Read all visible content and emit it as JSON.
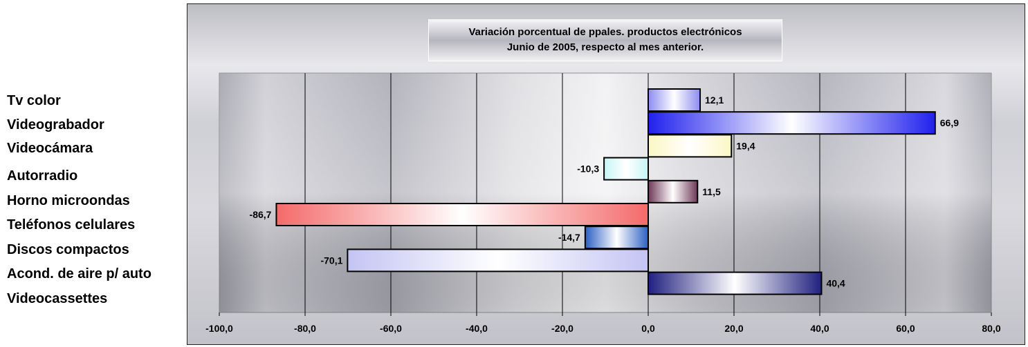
{
  "chart_data": {
    "type": "bar",
    "orientation": "horizontal",
    "title_lines": [
      "Variación porcentual de ppales. productos electrónicos",
      "Junio de 2005, respecto al mes anterior."
    ],
    "categories": [
      "Tv color",
      "Videograbador",
      "Videocámara",
      "Autorradio",
      "Horno microondas",
      "Teléfonos celulares",
      "Discos compactos",
      "Acond. de aire p/ auto",
      "Videocassettes"
    ],
    "values": [
      12.1,
      66.9,
      19.4,
      -10.3,
      11.5,
      -86.7,
      -14.7,
      -70.1,
      40.4
    ],
    "value_labels": [
      "12,1",
      "66,9",
      "19,4",
      "-10,3",
      "11,5",
      "-86,7",
      "-14,7",
      "-70,1",
      "40,4"
    ],
    "bar_colors": [
      "#8c8cf0",
      "#2020ee",
      "#fbf7c4",
      "#c6f5f5",
      "#6e3858",
      "#f46a6a",
      "#2b60c4",
      "#c4c4f4",
      "#202080"
    ],
    "xlim": [
      -100,
      80
    ],
    "xticks": [
      "-100,0",
      "-80,0",
      "-60,0",
      "-40,0",
      "-20,0",
      "0,0",
      "20,0",
      "40,0",
      "60,0",
      "80,0"
    ],
    "xtick_values": [
      -100,
      -80,
      -60,
      -40,
      -20,
      0,
      20,
      40,
      60,
      80
    ],
    "grid": "vertical",
    "legend": "none"
  }
}
